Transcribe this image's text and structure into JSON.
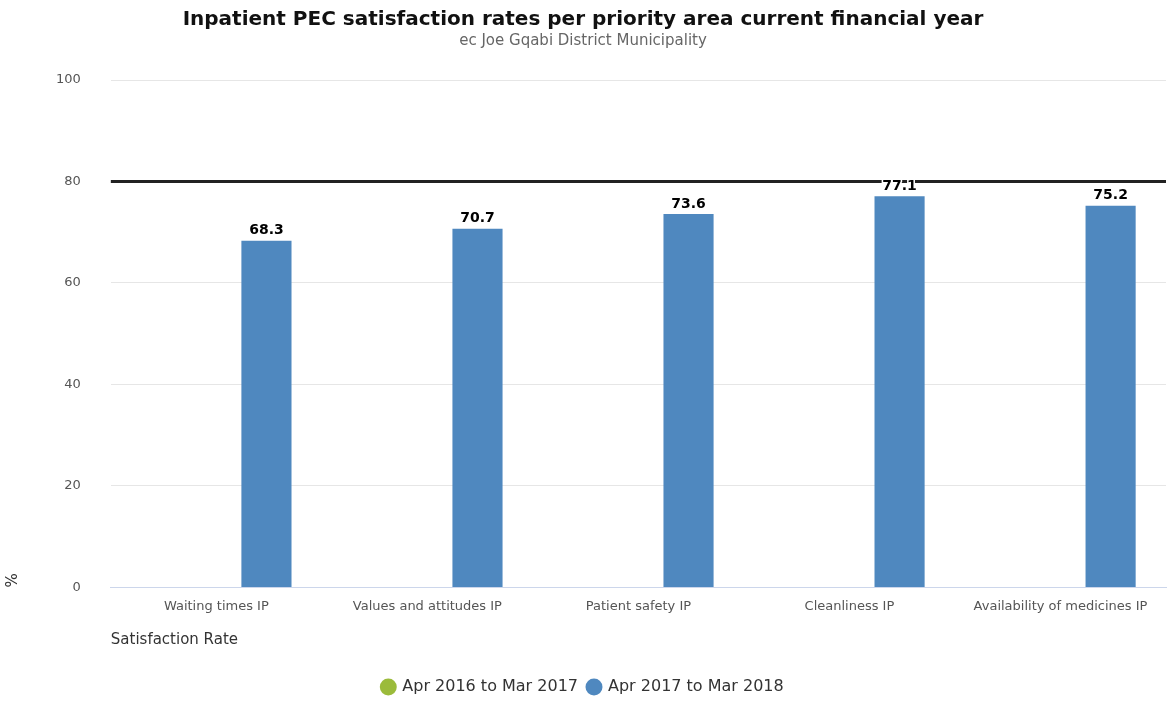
{
  "chart_data": {
    "type": "bar",
    "title": "Inpatient PEC satisfaction rates per priority area current financial year",
    "subtitle": "ec Joe Gqabi District Municipality",
    "xlabel": "Satisfaction Rate",
    "ylabel": "%",
    "categories": [
      "Waiting times IP",
      "Values and attitudes IP",
      "Patient safety IP",
      "Cleanliness IP",
      "Availability of medicines IP"
    ],
    "series": [
      {
        "name": "Apr 2016 to Mar 2017",
        "color": "#9bbb3b",
        "values": [
          null,
          null,
          null,
          null,
          null
        ]
      },
      {
        "name": "Apr 2017 to Mar 2018",
        "color": "#4f88bf",
        "values": [
          68.3,
          70.7,
          73.6,
          77.1,
          75.2
        ]
      }
    ],
    "ylim": [
      0,
      100
    ],
    "yticks": [
      0,
      20,
      40,
      60,
      80,
      100
    ],
    "grid": "y",
    "legend": "bottom",
    "data_labels": true,
    "ref_lines": [
      {
        "axis": "y",
        "value": 80,
        "color": "#222222"
      }
    ]
  }
}
